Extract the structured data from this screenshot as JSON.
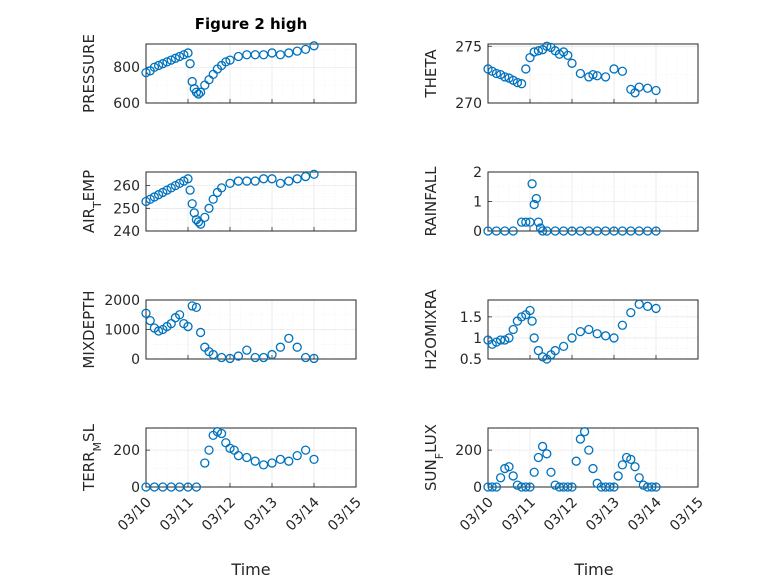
{
  "figure": {
    "title": "Figure 2 high",
    "marker_color": "#0072bd",
    "x_label": "Time",
    "x_ticks": [
      "03/10",
      "03/11",
      "03/12",
      "03/13",
      "03/14",
      "03/15"
    ]
  },
  "chart_data": [
    {
      "type": "scatter",
      "ylabel": "PRESSURE",
      "title": "Figure 2 high",
      "yticks": [
        600,
        800
      ],
      "ylim": [
        600,
        930
      ],
      "xlim": [
        0,
        5
      ],
      "grid": true,
      "x": [
        0,
        0.1,
        0.2,
        0.3,
        0.4,
        0.5,
        0.6,
        0.7,
        0.8,
        0.9,
        1.0,
        1.05,
        1.1,
        1.15,
        1.2,
        1.25,
        1.3,
        1.4,
        1.5,
        1.6,
        1.7,
        1.8,
        1.9,
        2.0,
        2.2,
        2.4,
        2.6,
        2.8,
        3.0,
        3.2,
        3.4,
        3.6,
        3.8,
        4.0
      ],
      "y": [
        770,
        780,
        800,
        810,
        820,
        830,
        840,
        850,
        860,
        870,
        880,
        820,
        720,
        680,
        660,
        650,
        660,
        700,
        730,
        760,
        790,
        810,
        830,
        840,
        860,
        870,
        870,
        870,
        880,
        870,
        880,
        890,
        900,
        920
      ]
    },
    {
      "type": "scatter",
      "ylabel": "THETA",
      "yticks": [
        270,
        275
      ],
      "ylim": [
        270,
        275.2
      ],
      "xlim": [
        0,
        5
      ],
      "grid": true,
      "x": [
        0,
        0.1,
        0.2,
        0.3,
        0.4,
        0.5,
        0.6,
        0.7,
        0.8,
        0.9,
        1.0,
        1.1,
        1.2,
        1.3,
        1.4,
        1.5,
        1.6,
        1.7,
        1.8,
        1.9,
        2.0,
        2.2,
        2.4,
        2.5,
        2.6,
        2.8,
        3.0,
        3.2,
        3.4,
        3.5,
        3.6,
        3.8,
        4.0
      ],
      "y": [
        273,
        272.8,
        272.6,
        272.5,
        272.3,
        272.2,
        272,
        271.8,
        271.7,
        273,
        274,
        274.5,
        274.6,
        274.7,
        275,
        274.9,
        274.6,
        274.3,
        274.5,
        274.2,
        273.5,
        272.6,
        272.3,
        272.5,
        272.4,
        272.3,
        273,
        272.8,
        271.2,
        270.9,
        271.4,
        271.3,
        271.1
      ]
    },
    {
      "type": "scatter",
      "ylabel": "AIR_TEMP",
      "yticks": [
        240,
        250,
        260
      ],
      "ylim": [
        240,
        266
      ],
      "xlim": [
        0,
        5
      ],
      "grid": true,
      "x": [
        0,
        0.1,
        0.2,
        0.3,
        0.4,
        0.5,
        0.6,
        0.7,
        0.8,
        0.9,
        1.0,
        1.05,
        1.1,
        1.15,
        1.2,
        1.25,
        1.3,
        1.4,
        1.5,
        1.6,
        1.7,
        1.8,
        2.0,
        2.2,
        2.4,
        2.6,
        2.8,
        3.0,
        3.2,
        3.4,
        3.6,
        3.8,
        4.0
      ],
      "y": [
        253,
        254,
        255,
        256,
        257,
        258,
        259,
        260,
        261,
        262,
        263,
        258,
        252,
        248,
        245,
        244,
        243,
        246,
        250,
        254,
        257,
        259,
        261,
        262,
        262,
        262,
        263,
        263,
        261,
        262,
        263,
        264,
        265
      ]
    },
    {
      "type": "scatter",
      "ylabel": "RAINFALL",
      "yticks": [
        0,
        1,
        2
      ],
      "ylim": [
        0,
        2
      ],
      "xlim": [
        0,
        5
      ],
      "grid": true,
      "x": [
        0,
        0.2,
        0.4,
        0.6,
        0.8,
        0.9,
        1.0,
        1.05,
        1.1,
        1.15,
        1.2,
        1.25,
        1.3,
        1.4,
        1.6,
        1.8,
        2.0,
        2.2,
        2.4,
        2.6,
        2.8,
        3.0,
        3.2,
        3.4,
        3.6,
        3.8,
        4.0
      ],
      "y": [
        0,
        0,
        0,
        0,
        0.3,
        0.3,
        0.3,
        1.6,
        0.9,
        1.1,
        0.3,
        0.1,
        0,
        0,
        0,
        0,
        0,
        0,
        0,
        0,
        0,
        0,
        0,
        0,
        0,
        0,
        0
      ]
    },
    {
      "type": "scatter",
      "ylabel": "MIXDEPTH",
      "yticks": [
        0,
        1000,
        2000
      ],
      "ylim": [
        0,
        2000
      ],
      "xlim": [
        0,
        5
      ],
      "grid": true,
      "x": [
        0,
        0.1,
        0.2,
        0.3,
        0.4,
        0.5,
        0.6,
        0.7,
        0.8,
        0.9,
        1.0,
        1.1,
        1.2,
        1.3,
        1.4,
        1.5,
        1.6,
        1.8,
        2.0,
        2.2,
        2.4,
        2.6,
        2.8,
        3.0,
        3.2,
        3.4,
        3.6,
        3.8,
        4.0
      ],
      "y": [
        1550,
        1300,
        1050,
        950,
        1000,
        1100,
        1200,
        1400,
        1500,
        1200,
        1100,
        1800,
        1750,
        900,
        400,
        250,
        150,
        50,
        20,
        100,
        300,
        50,
        50,
        150,
        400,
        700,
        400,
        50,
        20
      ]
    },
    {
      "type": "scatter",
      "ylabel": "H2OMIXRA",
      "yticks": [
        0.5,
        1,
        1.5
      ],
      "ylim": [
        0.5,
        1.9
      ],
      "xlim": [
        0,
        5
      ],
      "grid": true,
      "x": [
        0,
        0.1,
        0.2,
        0.3,
        0.4,
        0.5,
        0.6,
        0.7,
        0.8,
        0.9,
        1.0,
        1.05,
        1.1,
        1.2,
        1.3,
        1.4,
        1.5,
        1.6,
        1.8,
        2.0,
        2.2,
        2.4,
        2.6,
        2.8,
        3.0,
        3.2,
        3.4,
        3.6,
        3.8,
        4.0
      ],
      "y": [
        0.95,
        0.85,
        0.9,
        0.95,
        0.95,
        1.0,
        1.2,
        1.4,
        1.5,
        1.55,
        1.65,
        1.4,
        1.0,
        0.7,
        0.55,
        0.5,
        0.6,
        0.7,
        0.8,
        1.0,
        1.15,
        1.2,
        1.1,
        1.05,
        1.0,
        1.3,
        1.6,
        1.8,
        1.75,
        1.7
      ]
    },
    {
      "type": "scatter",
      "ylabel": "TERR_MSL",
      "yticks": [
        0,
        200
      ],
      "ylim": [
        0,
        320
      ],
      "xlim": [
        0,
        5
      ],
      "grid": true,
      "x": [
        0,
        0.2,
        0.4,
        0.6,
        0.8,
        1.0,
        1.2,
        1.4,
        1.5,
        1.6,
        1.7,
        1.8,
        1.9,
        2.0,
        2.1,
        2.2,
        2.4,
        2.6,
        2.8,
        3.0,
        3.2,
        3.4,
        3.6,
        3.8,
        4.0
      ],
      "y": [
        0,
        0,
        0,
        0,
        0,
        0,
        0,
        130,
        200,
        280,
        300,
        290,
        240,
        210,
        200,
        170,
        160,
        140,
        120,
        130,
        150,
        140,
        170,
        200,
        150
      ]
    },
    {
      "type": "scatter",
      "ylabel": "SUN_FLUX",
      "yticks": [
        0,
        200
      ],
      "ylim": [
        0,
        320
      ],
      "xlim": [
        0,
        5
      ],
      "grid": true,
      "x": [
        0,
        0.1,
        0.2,
        0.3,
        0.4,
        0.5,
        0.6,
        0.7,
        0.8,
        0.9,
        1.0,
        1.1,
        1.2,
        1.3,
        1.4,
        1.5,
        1.6,
        1.7,
        1.8,
        1.9,
        2.0,
        2.1,
        2.2,
        2.3,
        2.4,
        2.5,
        2.6,
        2.7,
        2.8,
        2.9,
        3.0,
        3.1,
        3.2,
        3.3,
        3.4,
        3.5,
        3.6,
        3.7,
        3.8,
        3.9,
        4.0
      ],
      "y": [
        0,
        0,
        0,
        50,
        100,
        110,
        60,
        10,
        0,
        0,
        0,
        80,
        160,
        220,
        180,
        80,
        10,
        0,
        0,
        0,
        0,
        140,
        260,
        300,
        200,
        100,
        20,
        0,
        0,
        0,
        0,
        60,
        120,
        160,
        150,
        110,
        50,
        10,
        0,
        0,
        0
      ]
    }
  ]
}
